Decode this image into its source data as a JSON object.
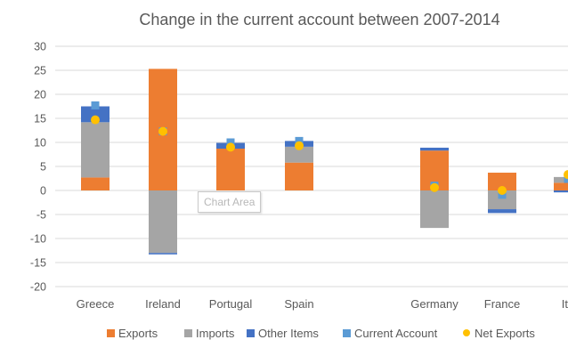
{
  "chart_data": {
    "type": "bar",
    "title": "Change in the current account between 2007-2014",
    "categories": [
      "Greece",
      "Ireland",
      "Portugal",
      "Spain",
      "Germany",
      "France",
      "Ita"
    ],
    "ylim": [
      -20,
      30
    ],
    "y_ticks": [
      30,
      25,
      20,
      15,
      10,
      5,
      0,
      -5,
      -10,
      -15,
      -20
    ],
    "grid": true,
    "legend_position": "bottom",
    "series": [
      {
        "name": "Exports",
        "kind": "bar",
        "color": "#ed7d31",
        "values": [
          2.7,
          25.3,
          8.7,
          5.8,
          8.3,
          3.7,
          1.6
        ]
      },
      {
        "name": "Imports",
        "kind": "bar",
        "color": "#a5a5a5",
        "values": [
          11.5,
          -13.0,
          0,
          3.3,
          -7.8,
          -3.9,
          1.2
        ]
      },
      {
        "name": "Other Items",
        "kind": "bar",
        "color": "#4472c4",
        "values": [
          3.3,
          -0.3,
          1.2,
          1.2,
          0.6,
          -0.8,
          -0.4
        ]
      },
      {
        "name": "Current Account",
        "kind": "marker",
        "color": "#5b9bd5",
        "values": [
          17.7,
          12.3,
          10.0,
          10.3,
          1.0,
          -0.9,
          2.4
        ]
      },
      {
        "name": "Net Exports",
        "kind": "marker",
        "color": "#ffc000",
        "values": [
          14.7,
          12.3,
          9.0,
          9.3,
          0.6,
          0.0,
          3.3
        ]
      }
    ]
  },
  "tooltip_text": "Chart Area"
}
